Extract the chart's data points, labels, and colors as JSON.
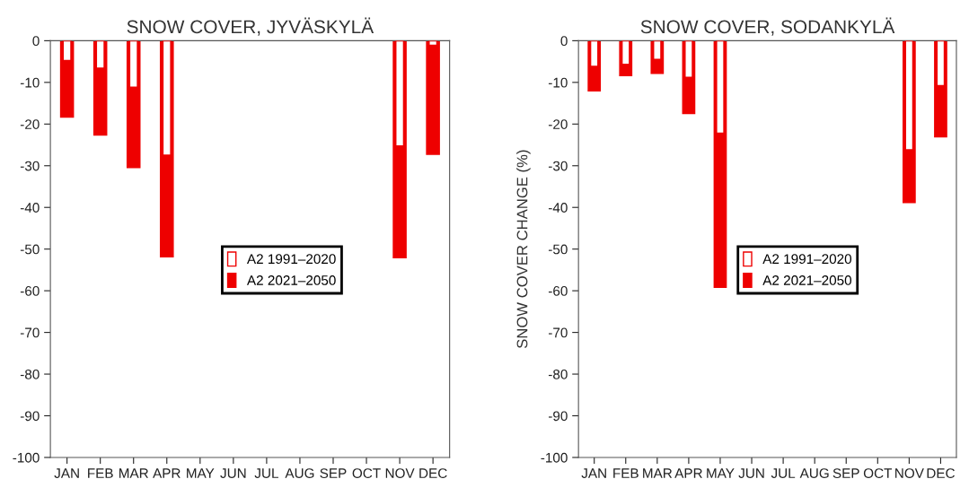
{
  "chart_data": [
    {
      "type": "bar",
      "title": "SNOW COVER, JYVÄSKYLÄ",
      "categories": [
        "JAN",
        "FEB",
        "MAR",
        "APR",
        "MAY",
        "JUN",
        "JUL",
        "AUG",
        "SEP",
        "OCT",
        "NOV",
        "DEC"
      ],
      "series": [
        {
          "name": "A2 2021–2050",
          "color": "#ee0000",
          "values": [
            -18.5,
            -22.8,
            -30.6,
            -52,
            null,
            null,
            null,
            null,
            null,
            null,
            -52.2,
            -27.4
          ]
        },
        {
          "name": "A2 1991–2020",
          "color": "#ffffff",
          "values": [
            -4.8,
            -6.6,
            -11.2,
            -27.5,
            null,
            null,
            null,
            null,
            null,
            null,
            -25.3,
            -1.1
          ]
        }
      ],
      "ylim": [
        -100,
        0
      ],
      "yticks": [
        -100,
        -90,
        -80,
        -70,
        -60,
        -50,
        -40,
        -30,
        -20,
        -10,
        0
      ],
      "legend": "center",
      "grid": false
    },
    {
      "type": "bar",
      "title": "SNOW COVER, SODANKYLÄ",
      "ylabel": "SNOW COVER CHANGE (%)",
      "categories": [
        "JAN",
        "FEB",
        "MAR",
        "APR",
        "MAY",
        "JUN",
        "JUL",
        "AUG",
        "SEP",
        "OCT",
        "NOV",
        "DEC"
      ],
      "series": [
        {
          "name": "A2 2021–2050",
          "color": "#ee0000",
          "values": [
            -12.2,
            -8.5,
            -8,
            -17.6,
            -59.3,
            null,
            null,
            null,
            null,
            null,
            -39,
            -23.2
          ]
        },
        {
          "name": "A2 1991–2020",
          "color": "#ffffff",
          "values": [
            -6.2,
            -5.7,
            -4.5,
            -8.8,
            -22.2,
            null,
            null,
            null,
            null,
            null,
            -26.2,
            -10.8
          ]
        }
      ],
      "ylim": [
        -100,
        0
      ],
      "yticks": [
        -100,
        -90,
        -80,
        -70,
        -60,
        -50,
        -40,
        -30,
        -20,
        -10,
        0
      ],
      "legend": "center",
      "grid": false
    }
  ]
}
